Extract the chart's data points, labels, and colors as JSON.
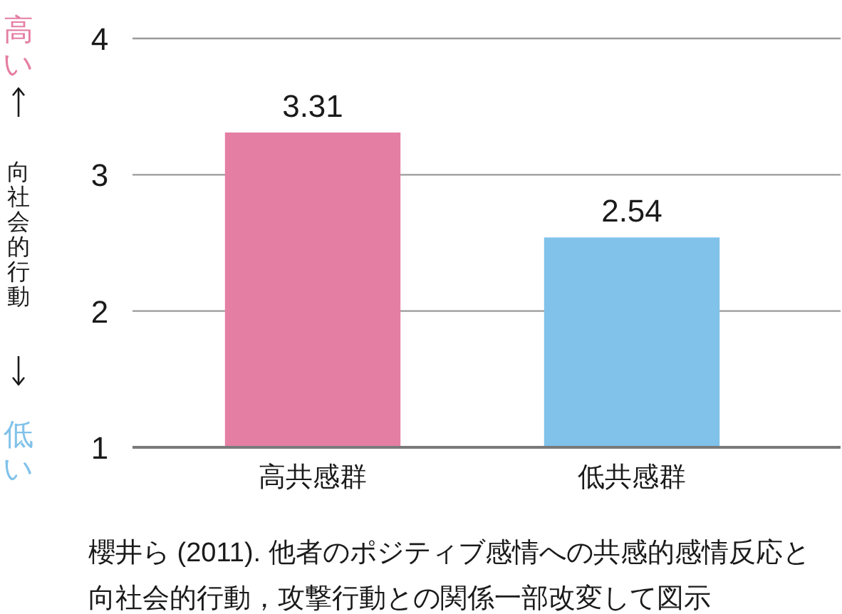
{
  "chart_data": {
    "type": "bar",
    "categories": [
      "高共感群",
      "低共感群"
    ],
    "values": [
      3.31,
      2.54
    ],
    "colors": [
      "#e57ea3",
      "#80c2ea"
    ],
    "ylabel": "向社会的行動",
    "ylim": [
      1,
      4
    ],
    "yticks": [
      1,
      2,
      3,
      4
    ],
    "grid": "y",
    "data_labels": true,
    "annotations": [
      "高い",
      "低い",
      "櫻井ら (2011). 他者のポジティブ感情への共感的感情反応と向社会的行動，攻撃行動との関係一部改変して図示"
    ]
  }
}
